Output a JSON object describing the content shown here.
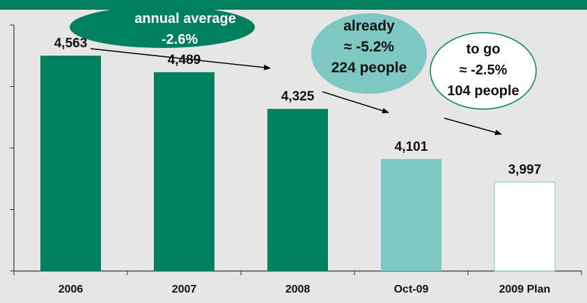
{
  "chart_data": {
    "type": "bar",
    "categories": [
      "2006",
      "2007",
      "2008",
      "Oct-09",
      "2009 Plan"
    ],
    "values": [
      4563,
      4489,
      4325,
      4101,
      3997
    ],
    "value_labels": [
      "4,563",
      "4,489",
      "4,325",
      "4,101",
      "3,997"
    ],
    "bar_colors": [
      "#00805f",
      "#00805f",
      "#00805f",
      "#7fc8c1",
      "#ffffff"
    ],
    "ylim": [
      3600,
      4700
    ],
    "grid": false,
    "title": "",
    "xlabel": "",
    "ylabel": ""
  },
  "annotations": {
    "annual_average": {
      "line1": "annual average",
      "line2": "-2.6%"
    },
    "already": {
      "line1": "already",
      "line2": "≈ -5.2%",
      "line3": "224 people"
    },
    "to_go": {
      "line1": "to go",
      "line2": "≈ -2.5%",
      "line3": "104 people"
    }
  },
  "colors": {
    "accent_green": "#00805f",
    "light_teal": "#7fc8c1",
    "bubble_teal": "#7fc8c1",
    "background": "#e6e6e6"
  }
}
